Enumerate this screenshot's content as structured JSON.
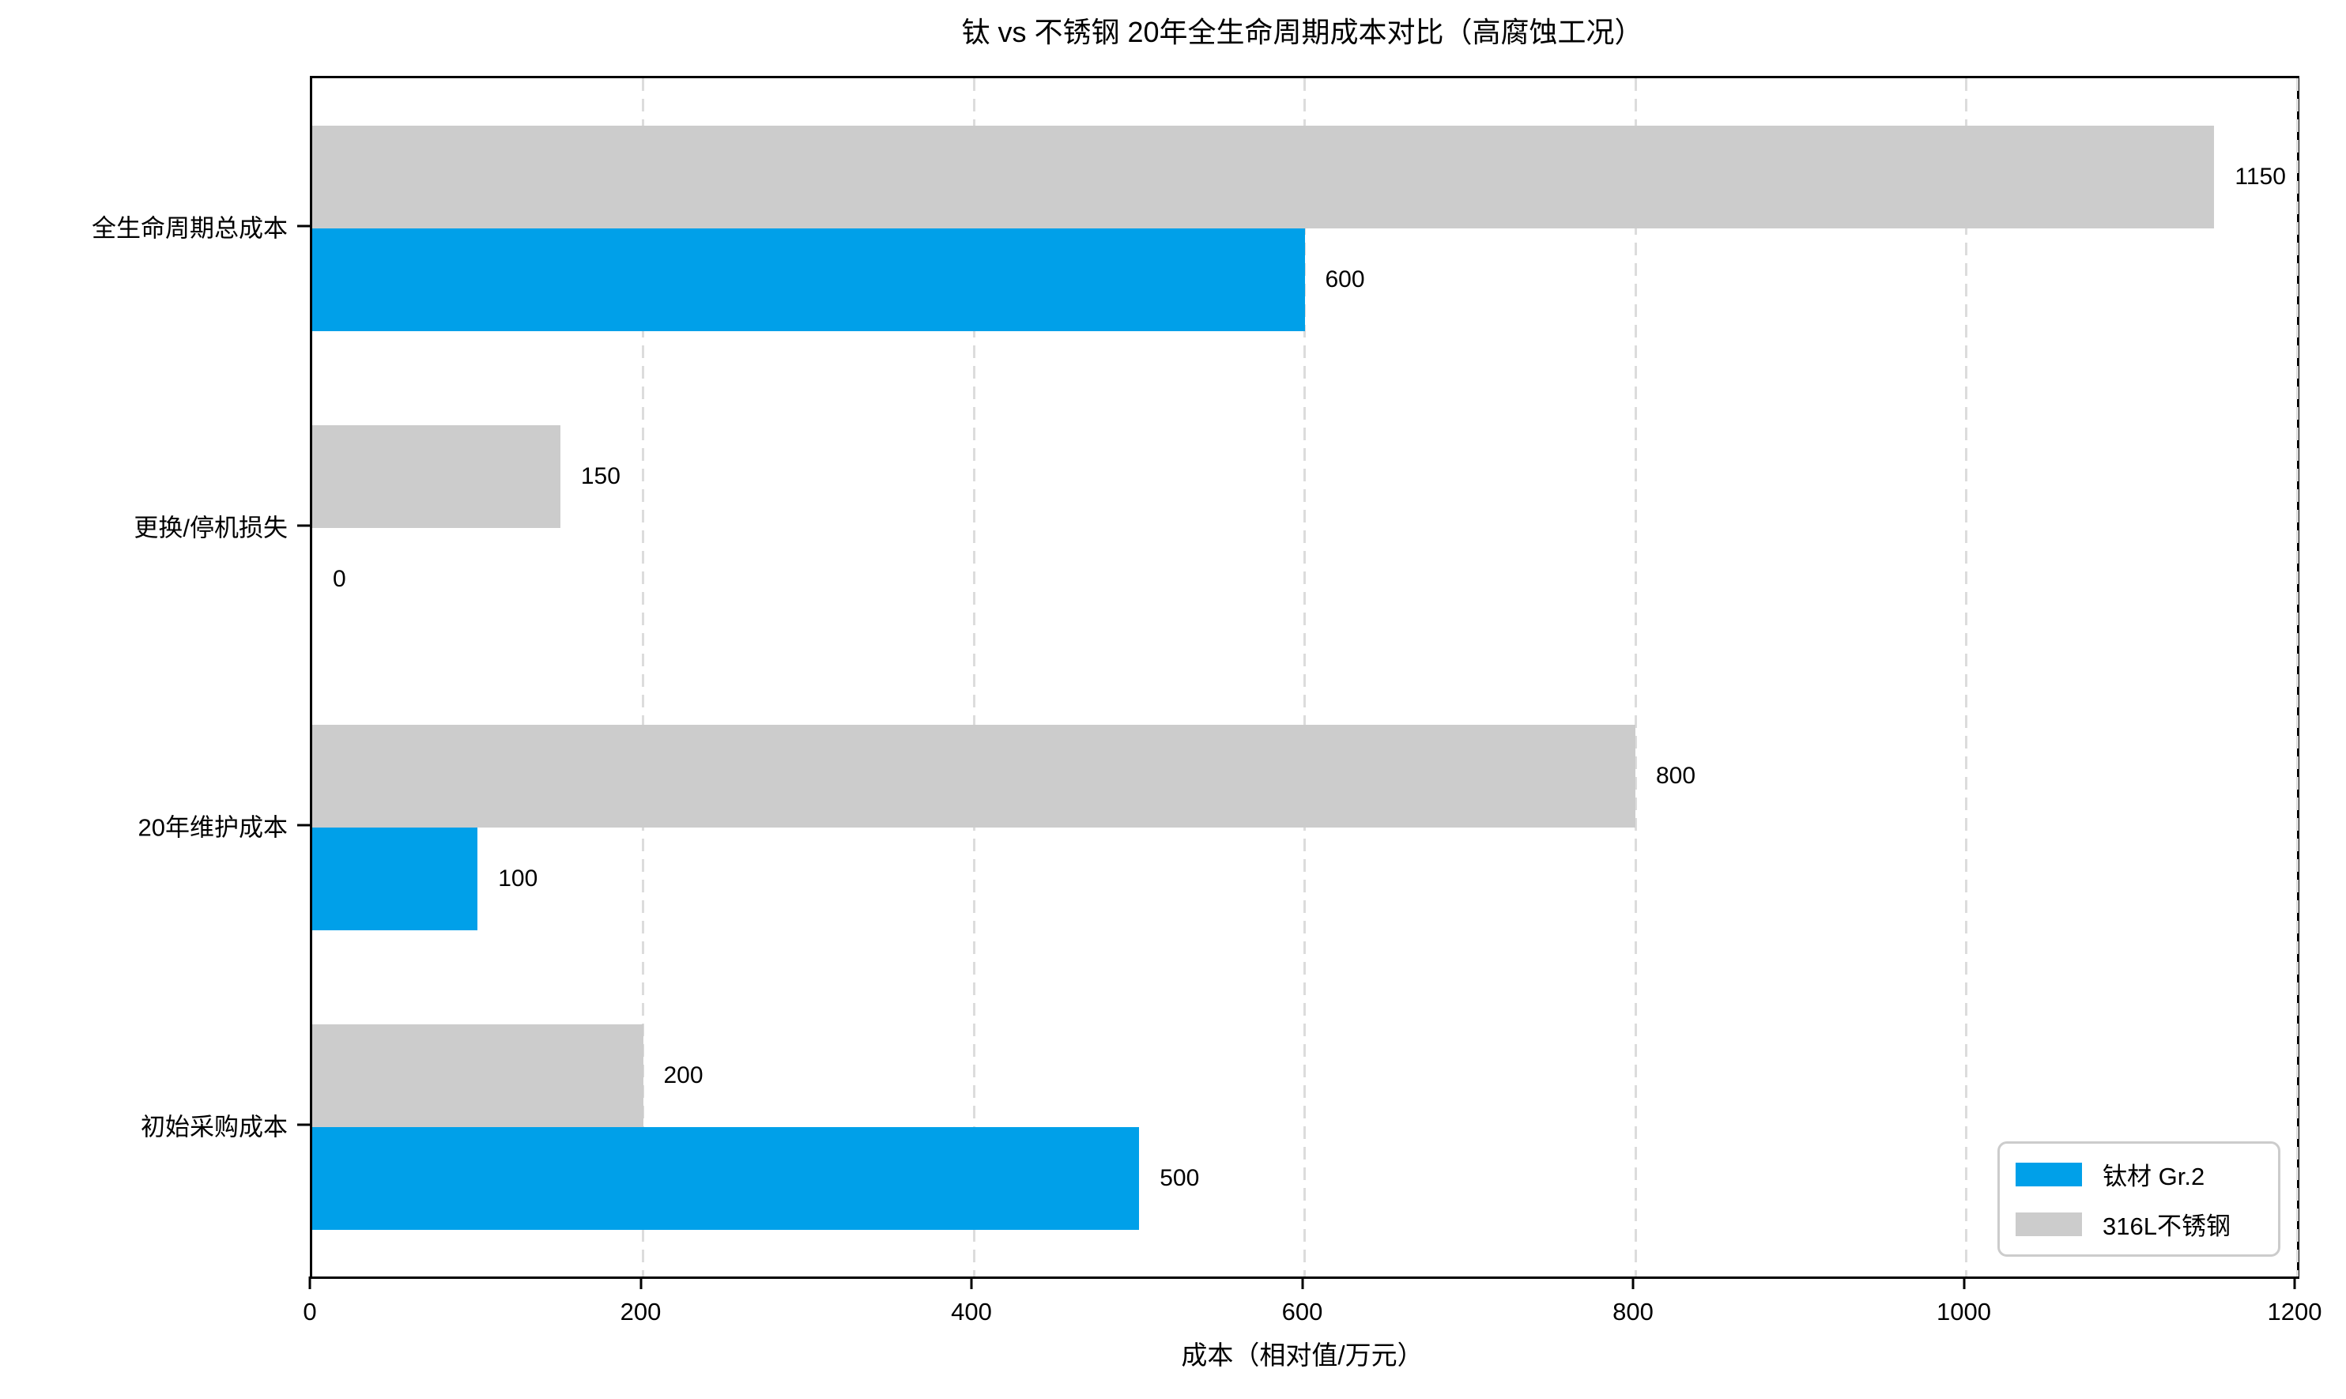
{
  "chart_data": {
    "type": "bar",
    "orientation": "horizontal",
    "title": "钛 vs 不锈钢 20年全生命周期成本对比（高腐蚀工况）",
    "xlabel": "成本（相对值/万元）",
    "categories_top_to_bottom": [
      "全生命周期总成本",
      "更换/停机损失",
      "20年维护成本",
      "初始采购成本"
    ],
    "series": [
      {
        "name": "钛材 Gr.2",
        "color": "#00A0E9",
        "values_top_to_bottom": [
          600,
          0,
          100,
          500
        ]
      },
      {
        "name": "316L不锈钢",
        "color": "#CCCCCC",
        "values_top_to_bottom": [
          1150,
          150,
          800,
          200
        ]
      }
    ],
    "xlim": [
      0,
      1200
    ],
    "xticks": [
      0,
      200,
      400,
      600,
      800,
      1000,
      1200
    ],
    "grid": "vertical-dashed",
    "gridline_color": "#DCDCDC",
    "legend_position": "lower right",
    "bar_value_labels_shown": true
  },
  "colors": {
    "background": "#FFFFFF",
    "spine": "#000000",
    "text": "#000000",
    "legend_border": "#CCCCCC"
  }
}
